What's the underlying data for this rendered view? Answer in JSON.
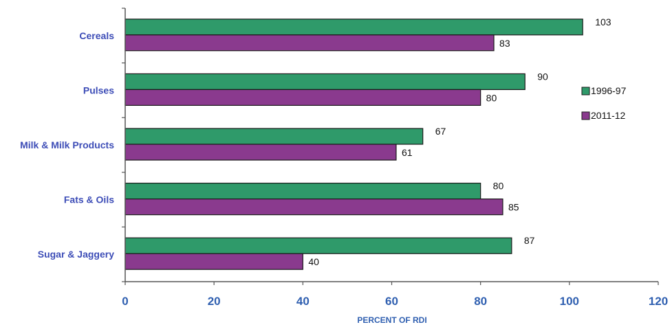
{
  "colors": {
    "series_1996": "#2f9a6a",
    "series_2011": "#8a3a8e",
    "axis": "#555555",
    "label": "#3d4db7",
    "tick": "#2f5fb0"
  },
  "chart_data": {
    "type": "bar",
    "orientation": "horizontal",
    "title": "",
    "xlabel": "PERCENT OF RDI",
    "ylabel": "",
    "categories": [
      "Cereals",
      "Pulses",
      "Milk & Milk Products",
      "Fats & Oils",
      "Sugar & Jaggery"
    ],
    "series": [
      {
        "name": "1996-97",
        "values": [
          103,
          90,
          67,
          80,
          87
        ]
      },
      {
        "name": "2011-12",
        "values": [
          83,
          80,
          61,
          85,
          40
        ]
      }
    ],
    "xlim": [
      0,
      120
    ],
    "xticks": [
      "0",
      "20",
      "40",
      "60",
      "80",
      "100",
      "120"
    ],
    "grid": false,
    "legend_position": "right"
  }
}
